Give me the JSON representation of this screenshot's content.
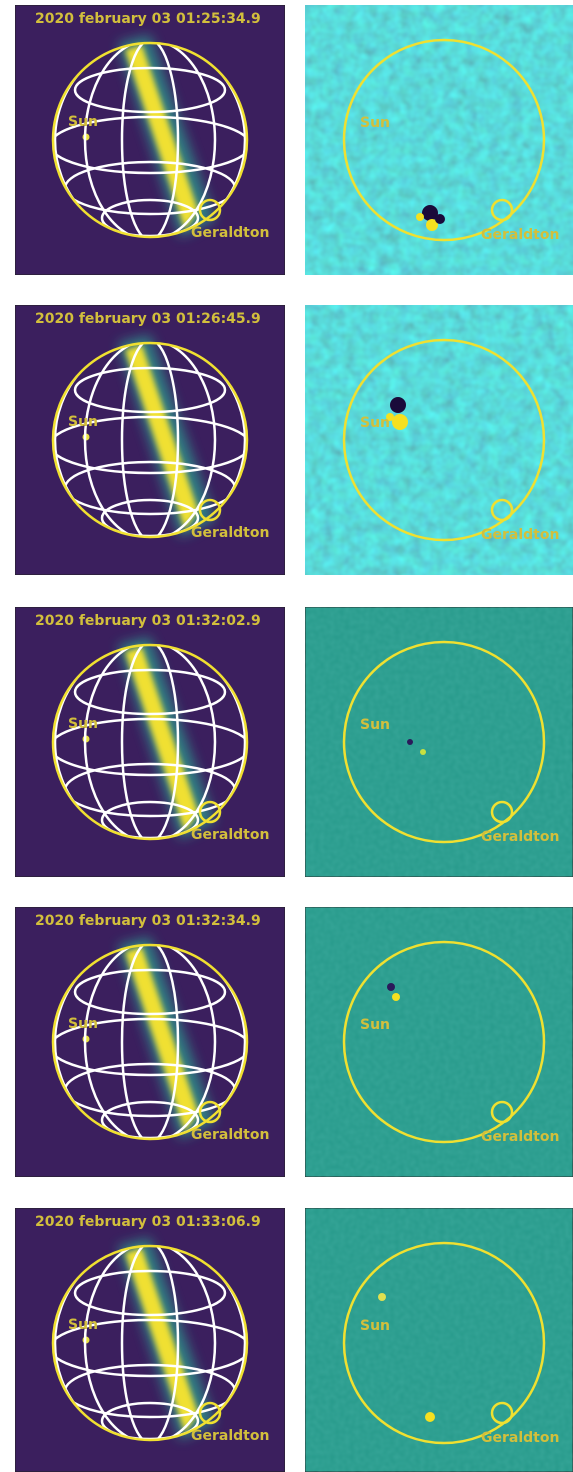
{
  "rows": [
    {
      "timestamp": "2020 february 03 01:25:34.9",
      "left_labels": [
        "Sun",
        "Geraldton"
      ],
      "right_labels": [
        "Sun",
        "Geraldton"
      ]
    },
    {
      "timestamp": "2020 february 03 01:26:45.9",
      "left_labels": [
        "Sun",
        "Geraldton"
      ],
      "right_labels": [
        "Sun",
        "Geraldton"
      ]
    },
    {
      "timestamp": "2020 february 03 01:32:02.9",
      "left_labels": [
        "Sun",
        "Geraldton"
      ],
      "right_labels": [
        "Sun",
        "Geraldton"
      ]
    },
    {
      "timestamp": "2020 february 03 01:32:34.9",
      "left_labels": [
        "Sun",
        "Geraldton"
      ],
      "right_labels": [
        "Sun",
        "Geraldton"
      ]
    },
    {
      "timestamp": "2020 february 03 01:33:06.9",
      "left_labels": [
        "Sun",
        "Geraldton"
      ],
      "right_labels": [
        "Sun",
        "Geraldton"
      ]
    }
  ]
}
